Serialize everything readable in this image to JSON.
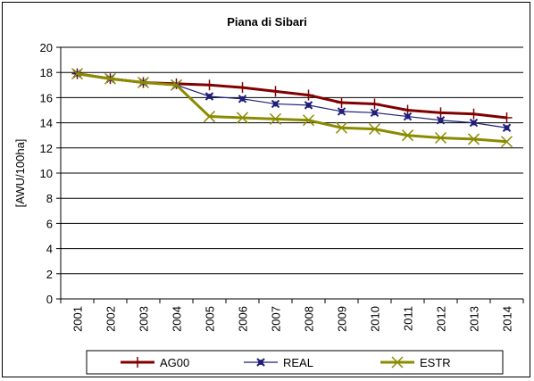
{
  "chart_data": {
    "type": "line",
    "title": "Piana di Sibari",
    "xlabel": "",
    "ylabel": "[AWU/100ha]",
    "categories": [
      "2001",
      "2002",
      "2003",
      "2004",
      "2005",
      "2006",
      "2007",
      "2008",
      "2009",
      "2010",
      "2011",
      "2012",
      "2013",
      "2014"
    ],
    "ylim": [
      0,
      20
    ],
    "yticks": [
      "0",
      "2",
      "4",
      "6",
      "8",
      "10",
      "12",
      "14",
      "16",
      "18",
      "20"
    ],
    "grid": true,
    "legend_position": "bottom",
    "series": [
      {
        "name": "AG00",
        "color": "#800000",
        "marker": "plus",
        "values": [
          17.9,
          17.5,
          17.2,
          17.1,
          17.0,
          16.8,
          16.5,
          16.2,
          15.6,
          15.5,
          15.0,
          14.8,
          14.7,
          14.4
        ]
      },
      {
        "name": "REAL",
        "color": "#1f1f7a",
        "marker": "star",
        "values": [
          17.9,
          17.5,
          17.2,
          17.0,
          16.1,
          15.9,
          15.5,
          15.4,
          14.9,
          14.8,
          14.5,
          14.2,
          14.0,
          13.6
        ]
      },
      {
        "name": "ESTR",
        "color": "#8b8b00",
        "marker": "x",
        "values": [
          17.9,
          17.5,
          17.2,
          17.0,
          14.5,
          14.4,
          14.3,
          14.2,
          13.6,
          13.5,
          13.0,
          12.8,
          12.7,
          12.5
        ]
      }
    ]
  }
}
